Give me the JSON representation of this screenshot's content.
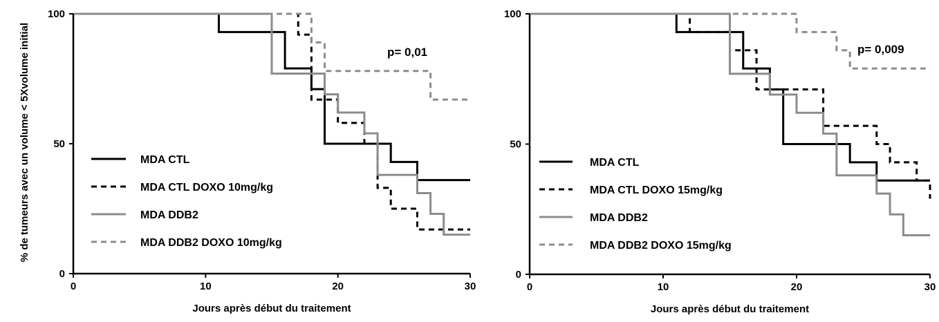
{
  "y_axis_label": "% de tumeurs avec un volume < 5Xvolume initial",
  "chart_data": [
    {
      "type": "line",
      "step": true,
      "title": "",
      "xlabel": "Jours après début du traitement",
      "ylabel": "% de tumeurs avec un volume < 5Xvolume initial",
      "xlim": [
        0,
        30
      ],
      "ylim": [
        0,
        100
      ],
      "xticks": [
        "0",
        "10",
        "20",
        "30"
      ],
      "yticks": [
        "0",
        "50",
        "100"
      ],
      "grid": false,
      "legend_position": "bottom-left",
      "annotation": "p= 0,01",
      "series": [
        {
          "name": "MDA CTL",
          "color": "#000000",
          "dash": "solid",
          "x": [
            0,
            11,
            16,
            18,
            19,
            24,
            26,
            30
          ],
          "y": [
            100,
            93,
            79,
            71,
            50,
            43,
            36,
            36
          ]
        },
        {
          "name": "MDA CTL DOXO 10mg/kg",
          "color": "#000000",
          "dash": "dashed",
          "x": [
            0,
            17,
            18,
            20,
            22,
            23,
            24,
            26,
            30
          ],
          "y": [
            100,
            92,
            67,
            58,
            50,
            33,
            25,
            17,
            17
          ]
        },
        {
          "name": "MDA DDB2",
          "color": "#8c8c8c",
          "dash": "solid",
          "x": [
            0,
            15,
            18,
            19,
            20,
            22,
            23,
            26,
            27,
            28,
            30
          ],
          "y": [
            100,
            77,
            77,
            69,
            62,
            54,
            38,
            31,
            23,
            15,
            15
          ]
        },
        {
          "name": "MDA DDB2 DOXO 10mg/kg",
          "color": "#8c8c8c",
          "dash": "dashed",
          "x": [
            0,
            18,
            19,
            27,
            30
          ],
          "y": [
            100,
            89,
            78,
            67,
            67
          ]
        }
      ]
    },
    {
      "type": "line",
      "step": true,
      "title": "",
      "xlabel": "Jours après début du traitement",
      "ylabel": "",
      "xlim": [
        0,
        30
      ],
      "ylim": [
        0,
        100
      ],
      "xticks": [
        "0",
        "10",
        "20",
        "30"
      ],
      "yticks": [
        "0",
        "50",
        "100"
      ],
      "grid": false,
      "legend_position": "bottom-left",
      "annotation": "p= 0,009",
      "series": [
        {
          "name": "MDA CTL",
          "color": "#000000",
          "dash": "solid",
          "x": [
            0,
            11,
            16,
            18,
            19,
            24,
            26,
            30
          ],
          "y": [
            100,
            93,
            79,
            71,
            50,
            43,
            36,
            36
          ]
        },
        {
          "name": "MDA CTL DOXO 15mg/kg",
          "color": "#000000",
          "dash": "dashed",
          "x": [
            0,
            12,
            15,
            17,
            22,
            26,
            27,
            29,
            30
          ],
          "y": [
            100,
            93,
            86,
            71,
            57,
            50,
            43,
            36,
            29
          ]
        },
        {
          "name": "MDA DDB2",
          "color": "#8c8c8c",
          "dash": "solid",
          "x": [
            0,
            15,
            18,
            20,
            22,
            23,
            26,
            27,
            28,
            30
          ],
          "y": [
            100,
            77,
            69,
            62,
            54,
            38,
            31,
            23,
            15,
            15
          ]
        },
        {
          "name": "MDA DDB2 DOXO 15mg/kg",
          "color": "#8c8c8c",
          "dash": "dashed",
          "x": [
            0,
            20,
            23,
            24,
            30
          ],
          "y": [
            100,
            93,
            86,
            79,
            79
          ]
        }
      ]
    }
  ]
}
